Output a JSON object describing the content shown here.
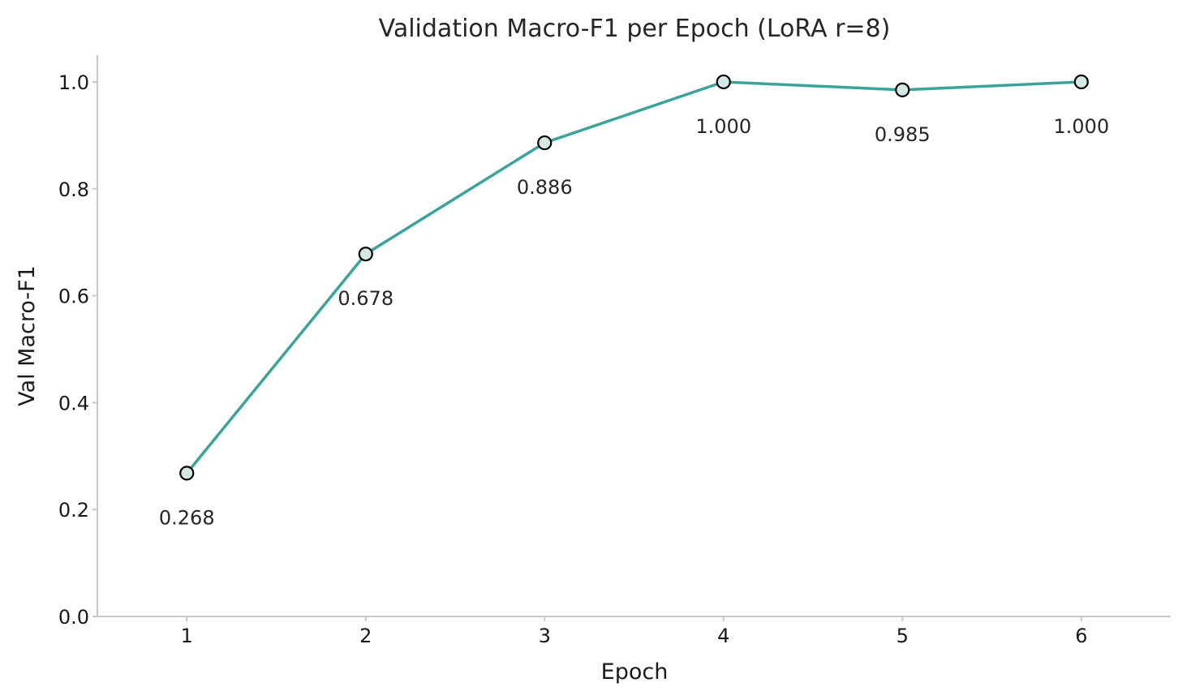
{
  "chart_data": {
    "type": "line",
    "title": "Validation Macro-F1 per Epoch (LoRA r=8)",
    "xlabel": "Epoch",
    "ylabel": "Val Macro-F1",
    "x": [
      1,
      2,
      3,
      4,
      5,
      6
    ],
    "xlim": [
      0.5,
      6.5
    ],
    "ylim": [
      0.0,
      1.05
    ],
    "yticks": [
      0.0,
      0.2,
      0.4,
      0.6,
      0.8,
      1.0
    ],
    "ytick_labels": [
      "0.0",
      "0.2",
      "0.4",
      "0.6",
      "0.8",
      "1.0"
    ],
    "xtick_labels": [
      "1",
      "2",
      "3",
      "4",
      "5",
      "6"
    ],
    "grid": false,
    "series": [
      {
        "name": "Val Macro-F1",
        "values": [
          0.268,
          0.678,
          0.886,
          1.0,
          0.985,
          1.0
        ],
        "labels": [
          "0.268",
          "0.678",
          "0.886",
          "1.000",
          "0.985",
          "1.000"
        ],
        "line_color": "#3aa39a",
        "marker_fill": "#d5e8e3",
        "marker_edge": "#000000"
      }
    ]
  }
}
